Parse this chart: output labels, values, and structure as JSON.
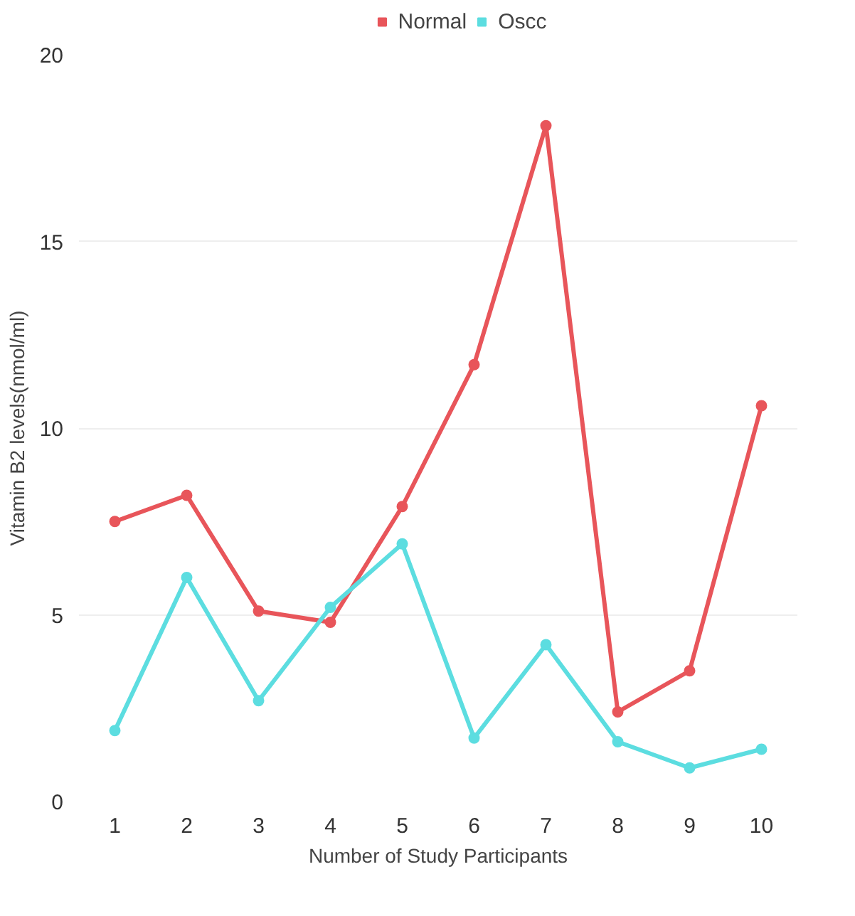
{
  "chart_data": {
    "type": "line",
    "xlabel": "Number of Study Participants",
    "ylabel": "Vitamin B2 levels(nmol/ml)",
    "categories": [
      "1",
      "2",
      "3",
      "4",
      "5",
      "6",
      "7",
      "8",
      "9",
      "10"
    ],
    "series": [
      {
        "name": "Normal",
        "color": "#e8555a",
        "values": [
          7.5,
          8.2,
          5.1,
          4.8,
          7.9,
          11.7,
          18.1,
          2.4,
          3.5,
          10.6
        ]
      },
      {
        "name": "Oscc",
        "color": "#5cdde0",
        "values": [
          1.9,
          6.0,
          2.7,
          5.2,
          6.9,
          1.7,
          4.2,
          1.6,
          0.9,
          1.4
        ]
      }
    ],
    "ylim": [
      0,
      20
    ],
    "yticks": [
      0,
      5,
      10,
      15,
      20
    ],
    "grid": "y",
    "legend": "top",
    "marker": "circle",
    "line_style": "solid"
  }
}
